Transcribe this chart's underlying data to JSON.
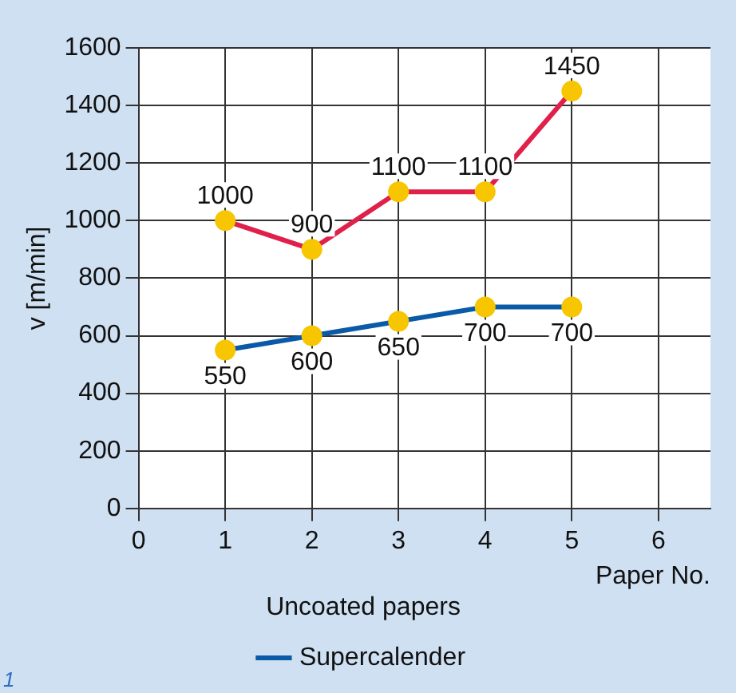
{
  "chart_data": {
    "type": "line",
    "xlabel": "Paper No.",
    "ylabel": "v [m/min]",
    "legend_title": "Uncoated papers",
    "x": [
      1,
      2,
      3,
      4,
      5
    ],
    "series": [
      {
        "color": "#e0204a",
        "values": [
          1000,
          900,
          1100,
          1100,
          1450
        ]
      },
      {
        "name": "Supercalender",
        "color": "#0b5aa8",
        "values": [
          550,
          600,
          650,
          700,
          700
        ]
      }
    ],
    "xlim": [
      0,
      6.6
    ],
    "xticks": [
      0,
      1,
      2,
      3,
      4,
      5,
      6
    ],
    "ylim": [
      0,
      1600
    ],
    "yticks": [
      0,
      200,
      400,
      600,
      800,
      1000,
      1200,
      1400,
      1600
    ],
    "grid": true,
    "legend": "bottom",
    "marker": "circle",
    "line_style": "solid",
    "data_labels": true,
    "annotations": [
      "1"
    ]
  }
}
